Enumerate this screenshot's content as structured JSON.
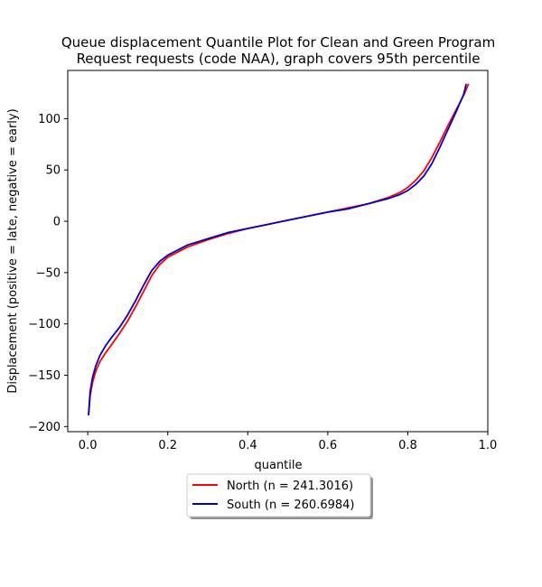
{
  "chart_data": {
    "type": "line",
    "title_lines": [
      "Queue displacement Quantile Plot for Clean and Green Program",
      "Request  requests (code NAA), graph covers 95th percentile"
    ],
    "xlabel": "quantile",
    "ylabel": "Displacement (positive = late, negative = early)",
    "xlim": [
      -0.05,
      1.0
    ],
    "ylim": [
      -205,
      147
    ],
    "x_ticks": [
      0.0,
      0.2,
      0.4,
      0.6,
      0.8,
      1.0
    ],
    "x_tick_labels": [
      "0.0",
      "0.2",
      "0.4",
      "0.6",
      "0.8",
      "1.0"
    ],
    "y_ticks": [
      -200,
      -150,
      -100,
      -50,
      0,
      50,
      100
    ],
    "y_tick_labels": [
      "−200",
      "−150",
      "−100",
      "−50",
      "0",
      "50",
      "100"
    ],
    "grid": false,
    "legend_position": "below-center",
    "series": [
      {
        "name": "North (n = 241.3016)",
        "color": "#ff0000",
        "x": [
          0.002,
          0.006,
          0.012,
          0.02,
          0.03,
          0.045,
          0.06,
          0.08,
          0.1,
          0.12,
          0.14,
          0.16,
          0.18,
          0.2,
          0.25,
          0.3,
          0.35,
          0.4,
          0.45,
          0.5,
          0.55,
          0.6,
          0.65,
          0.7,
          0.75,
          0.78,
          0.8,
          0.82,
          0.84,
          0.86,
          0.88,
          0.9,
          0.92,
          0.94,
          0.952
        ],
        "y": [
          -189,
          -170,
          -157,
          -146,
          -137,
          -128,
          -120,
          -109,
          -97,
          -83,
          -68,
          -53,
          -42,
          -35,
          -25,
          -18,
          -12,
          -7,
          -3,
          1,
          5,
          9,
          13,
          17,
          23,
          28,
          33,
          40,
          49,
          62,
          77,
          93,
          108,
          123,
          134
        ]
      },
      {
        "name": "South (n = 260.6984)",
        "color": "#0000cc",
        "x": [
          0.002,
          0.006,
          0.012,
          0.02,
          0.03,
          0.045,
          0.06,
          0.08,
          0.1,
          0.12,
          0.14,
          0.16,
          0.18,
          0.2,
          0.25,
          0.3,
          0.35,
          0.4,
          0.45,
          0.5,
          0.55,
          0.6,
          0.65,
          0.7,
          0.75,
          0.78,
          0.8,
          0.82,
          0.84,
          0.86,
          0.88,
          0.9,
          0.92,
          0.94,
          0.946
        ],
        "y": [
          -189,
          -166,
          -152,
          -141,
          -131,
          -121,
          -113,
          -103,
          -91,
          -77,
          -62,
          -48,
          -39,
          -33,
          -23,
          -17,
          -11,
          -7,
          -3,
          1,
          5,
          9,
          12,
          17,
          22,
          26,
          30,
          36,
          44,
          56,
          72,
          89,
          106,
          124,
          134
        ]
      }
    ]
  }
}
